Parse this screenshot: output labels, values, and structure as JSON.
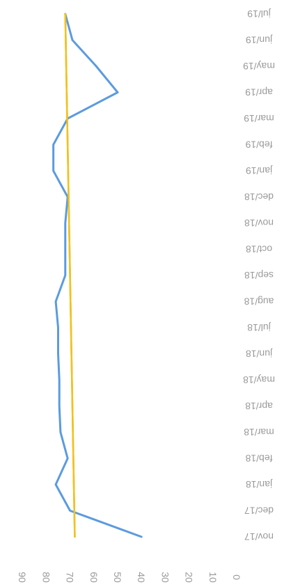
{
  "chart_data": {
    "type": "line",
    "orientation": "rotated-90",
    "x": [
      "jul/19",
      "jun/19",
      "may/19",
      "apr/19",
      "mar/19",
      "feb/19",
      "jan/19",
      "dec/18",
      "nov/18",
      "oct/18",
      "sep/18",
      "aug/18",
      "jul/18",
      "jun/18",
      "may/18",
      "apr/18",
      "mar/18",
      "feb/18",
      "jan/18",
      "dec/17",
      "nov/17"
    ],
    "ylim": [
      0,
      90
    ],
    "yticks": [
      90,
      80,
      70,
      60,
      50,
      40,
      30,
      20,
      10,
      0
    ],
    "series": [
      {
        "color": "#5b9bdf",
        "values": [
          72,
          69,
          59,
          50,
          71,
          77,
          77,
          71,
          72,
          72,
          72,
          76,
          75,
          75,
          74.5,
          74.5,
          74,
          71,
          76,
          70,
          40
        ]
      },
      {
        "color": "#f07f2d",
        "values": [
          72,
          71.8,
          71.6,
          71.4,
          71.2,
          71,
          70.8,
          70.6,
          70.4,
          70.2,
          70,
          69.8,
          69.6,
          69.4,
          69.2,
          69,
          68.8,
          68.6,
          68.4,
          68.2,
          68
        ]
      },
      {
        "color": "#f0c419",
        "values": [
          72,
          71.8,
          71.6,
          71.4,
          71.2,
          71,
          70.8,
          70.6,
          70.4,
          70.2,
          70,
          69.8,
          69.6,
          69.4,
          69.2,
          69,
          68.8,
          68.6,
          68.4,
          68.2,
          68
        ]
      }
    ],
    "grid": false,
    "legend": "none"
  }
}
